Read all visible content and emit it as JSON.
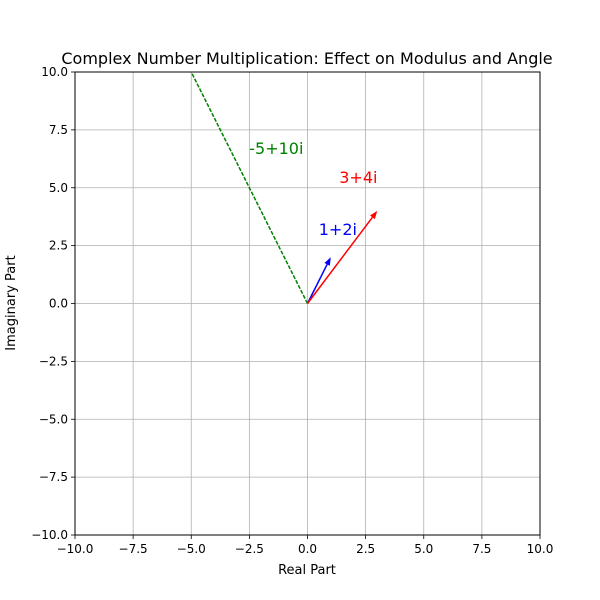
{
  "chart_data": {
    "type": "vector",
    "title": "Complex Number Multiplication: Effect on Modulus and Angle",
    "xlabel": "Real Part",
    "ylabel": "Imaginary Part",
    "xlim": [
      -10,
      10
    ],
    "ylim": [
      -10,
      10
    ],
    "xticks": [
      -10,
      -7.5,
      -5,
      -2.5,
      0,
      2.5,
      5,
      7.5,
      10
    ],
    "yticks": [
      -10,
      -7.5,
      -5,
      -2.5,
      0,
      2.5,
      5,
      7.5,
      10
    ],
    "grid": true,
    "vectors": [
      {
        "id": "z1",
        "label": "1+2i",
        "re": 1,
        "im": 2,
        "color": "#0000ff",
        "style": "solid"
      },
      {
        "id": "z2",
        "label": "3+4i",
        "re": 3,
        "im": 4,
        "color": "#ff0000",
        "style": "solid"
      },
      {
        "id": "product",
        "label": "-5+10i",
        "re": -5,
        "im": 10,
        "color": "#008000",
        "style": "dashed"
      }
    ]
  }
}
